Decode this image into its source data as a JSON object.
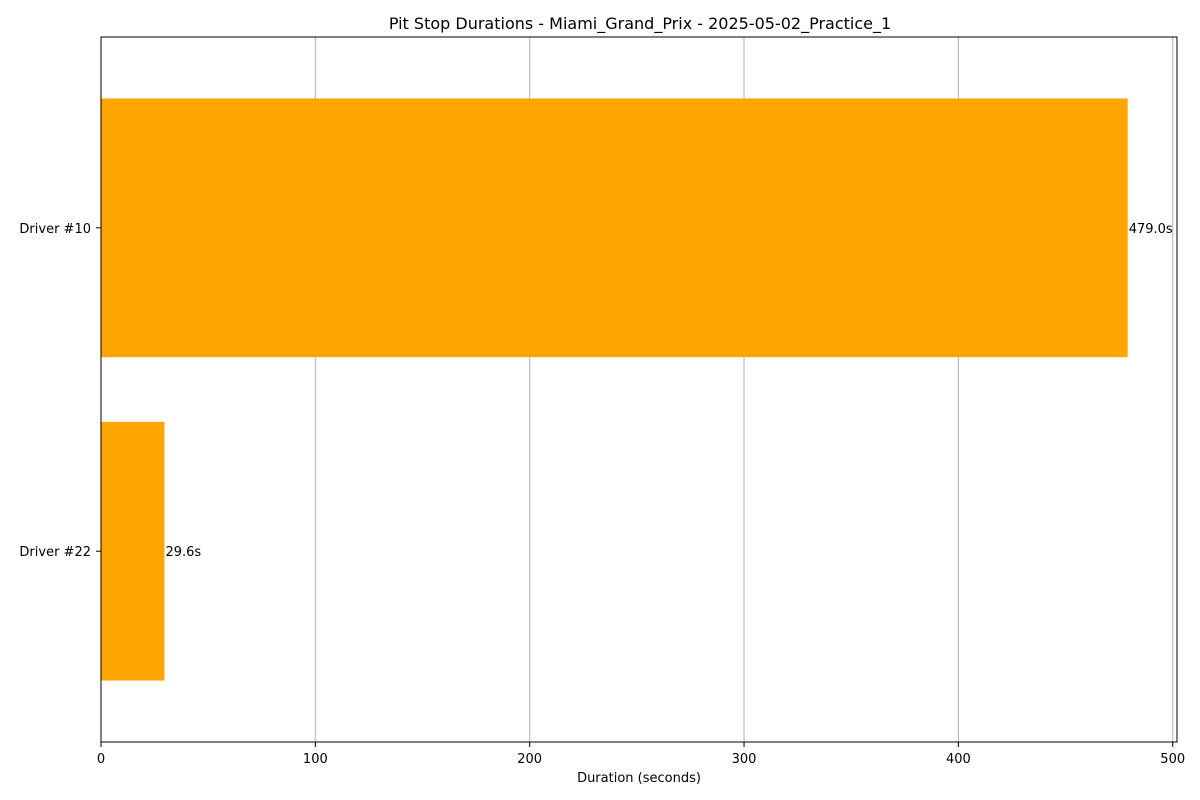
{
  "chart_data": {
    "type": "bar",
    "orientation": "horizontal",
    "title": "Pit Stop Durations - Miami_Grand_Prix - 2025-05-02_Practice_1",
    "xlabel": "Duration (seconds)",
    "ylabel": "",
    "categories": [
      "Driver #10",
      "Driver #22"
    ],
    "values": [
      479.0,
      29.6
    ],
    "data_labels": [
      "479.0s",
      "29.6s"
    ],
    "xlim": [
      0,
      502
    ],
    "xticks": [
      0,
      100,
      200,
      300,
      400,
      500
    ],
    "xtick_labels": [
      "0",
      "100",
      "200",
      "300",
      "400",
      "500"
    ],
    "grid": "x-axis vertical lines",
    "bar_color": "#ffa500",
    "grid_color": "#b0b0b0"
  }
}
